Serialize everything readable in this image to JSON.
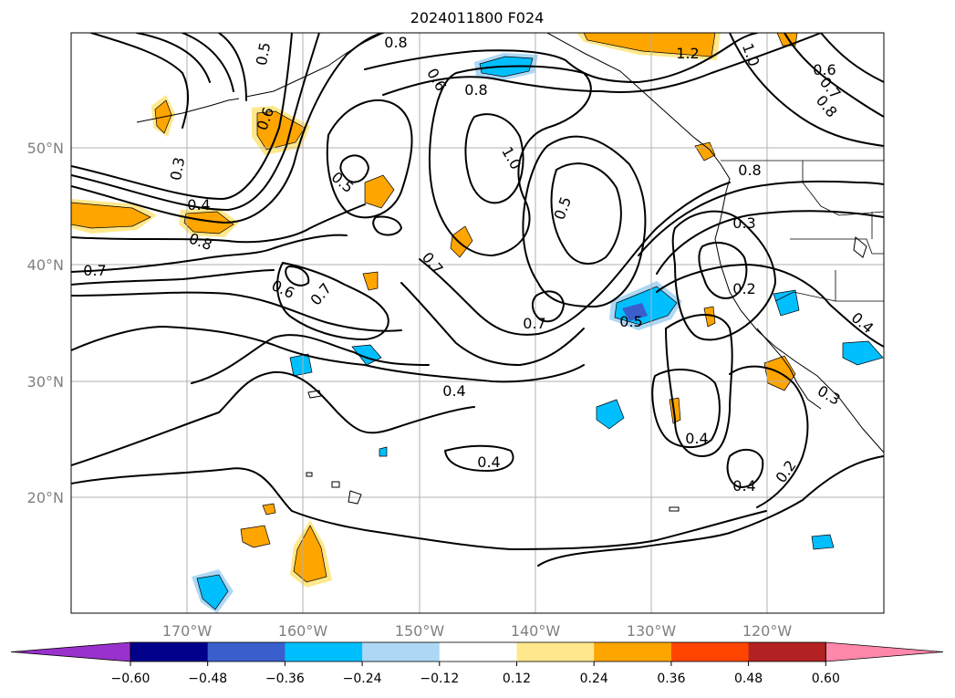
{
  "title": "2024011800 F024",
  "map": {
    "lat_labels": [
      "50°N",
      "40°N",
      "30°N",
      "20°N"
    ],
    "lon_labels": [
      "170°W",
      "160°W",
      "150°W",
      "140°W",
      "130°W",
      "120°W"
    ],
    "contour_labels": [
      "0.8",
      "0.5",
      "0.6",
      "0.6",
      "0.8",
      "1.2",
      "1.0",
      "0.6",
      "0.7",
      "0.8",
      "0.3",
      "0.4",
      "0.5",
      "1.0",
      "0.8",
      "0.5",
      "0.3",
      "0.7",
      "0.8",
      "0.7",
      "0.6",
      "0.7",
      "0.7",
      "0.2",
      "0.4",
      "0.3",
      "0.5",
      "0.4",
      "0.4",
      "0.4",
      "0.4",
      "0.2"
    ]
  },
  "colorbar": {
    "ticks": [
      "−0.60",
      "−0.48",
      "−0.36",
      "−0.24",
      "−0.12",
      "0.12",
      "0.24",
      "0.36",
      "0.48",
      "0.60"
    ],
    "colors": [
      "#9932cc",
      "#00008b",
      "#3a5fcd",
      "#00bfff",
      "#add8f5",
      "#ffffff",
      "#ffe88c",
      "#ffa500",
      "#ff4500",
      "#b22222",
      "#ff88aa"
    ]
  },
  "colors": {
    "positive_fill": "#ffa500",
    "positive_light": "#ffe88c",
    "negative_fill": "#00bfff",
    "negative_light": "#add8f5",
    "negative_dark": "#3a5fcd"
  }
}
